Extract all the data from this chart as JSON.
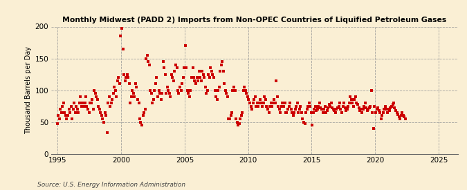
{
  "title": "Monthly Midwest (PADD 2) Imports from Non-OPEC Countries of Liquified Petroleum Gases",
  "ylabel": "Thousand Barrels per Day",
  "source": "Source: U.S. Energy Information Administration",
  "background_color": "#faefd4",
  "dot_color": "#cc0000",
  "xlim": [
    1994.5,
    2026.5
  ],
  "ylim": [
    0,
    200
  ],
  "xticks": [
    1995,
    2000,
    2005,
    2010,
    2015,
    2020,
    2025
  ],
  "yticks": [
    0,
    50,
    100,
    150,
    200
  ],
  "data_x": [
    1994.96,
    1995.04,
    1995.13,
    1995.21,
    1995.29,
    1995.38,
    1995.46,
    1995.54,
    1995.63,
    1995.71,
    1995.79,
    1995.88,
    1995.96,
    1996.04,
    1996.13,
    1996.21,
    1996.29,
    1996.38,
    1996.46,
    1996.54,
    1996.63,
    1996.71,
    1996.79,
    1996.88,
    1996.96,
    1997.04,
    1997.13,
    1997.21,
    1997.29,
    1997.38,
    1997.46,
    1997.54,
    1997.63,
    1997.71,
    1997.79,
    1997.88,
    1997.96,
    1998.04,
    1998.13,
    1998.21,
    1998.29,
    1998.38,
    1998.46,
    1998.54,
    1998.63,
    1998.71,
    1998.79,
    1998.88,
    1998.96,
    1999.04,
    1999.13,
    1999.21,
    1999.29,
    1999.38,
    1999.46,
    1999.54,
    1999.63,
    1999.71,
    1999.79,
    1999.88,
    1999.96,
    2000.04,
    2000.13,
    2000.21,
    2000.29,
    2000.38,
    2000.46,
    2000.54,
    2000.63,
    2000.71,
    2000.79,
    2000.88,
    2000.96,
    2001.04,
    2001.13,
    2001.21,
    2001.29,
    2001.38,
    2001.46,
    2001.54,
    2001.63,
    2001.71,
    2001.79,
    2001.88,
    2001.96,
    2002.04,
    2002.13,
    2002.21,
    2002.29,
    2002.38,
    2002.46,
    2002.54,
    2002.63,
    2002.71,
    2002.79,
    2002.88,
    2002.96,
    2003.04,
    2003.13,
    2003.21,
    2003.29,
    2003.38,
    2003.46,
    2003.54,
    2003.63,
    2003.71,
    2003.79,
    2003.88,
    2003.96,
    2004.04,
    2004.13,
    2004.21,
    2004.29,
    2004.38,
    2004.46,
    2004.54,
    2004.63,
    2004.71,
    2004.79,
    2004.88,
    2004.96,
    2005.04,
    2005.13,
    2005.21,
    2005.29,
    2005.38,
    2005.46,
    2005.54,
    2005.63,
    2005.71,
    2005.79,
    2005.88,
    2005.96,
    2006.04,
    2006.13,
    2006.21,
    2006.29,
    2006.38,
    2006.46,
    2006.54,
    2006.63,
    2006.71,
    2006.79,
    2006.88,
    2006.96,
    2007.04,
    2007.13,
    2007.21,
    2007.29,
    2007.38,
    2007.46,
    2007.54,
    2007.63,
    2007.71,
    2007.79,
    2007.88,
    2007.96,
    2008.04,
    2008.13,
    2008.21,
    2008.29,
    2008.38,
    2008.46,
    2008.54,
    2008.63,
    2008.71,
    2008.79,
    2008.88,
    2008.96,
    2009.04,
    2009.13,
    2009.21,
    2009.29,
    2009.38,
    2009.46,
    2009.54,
    2009.63,
    2009.71,
    2009.79,
    2009.88,
    2009.96,
    2010.04,
    2010.13,
    2010.21,
    2010.29,
    2010.38,
    2010.46,
    2010.54,
    2010.63,
    2010.71,
    2010.79,
    2010.88,
    2010.96,
    2011.04,
    2011.13,
    2011.21,
    2011.29,
    2011.38,
    2011.46,
    2011.54,
    2011.63,
    2011.71,
    2011.79,
    2011.88,
    2011.96,
    2012.04,
    2012.13,
    2012.21,
    2012.29,
    2012.38,
    2012.46,
    2012.54,
    2012.63,
    2012.71,
    2012.79,
    2012.88,
    2012.96,
    2013.04,
    2013.13,
    2013.21,
    2013.29,
    2013.38,
    2013.46,
    2013.54,
    2013.63,
    2013.71,
    2013.79,
    2013.88,
    2013.96,
    2014.04,
    2014.13,
    2014.21,
    2014.29,
    2014.38,
    2014.46,
    2014.54,
    2014.63,
    2014.71,
    2014.79,
    2014.88,
    2014.96,
    2015.04,
    2015.13,
    2015.21,
    2015.29,
    2015.38,
    2015.46,
    2015.54,
    2015.63,
    2015.71,
    2015.79,
    2015.88,
    2015.96,
    2016.04,
    2016.13,
    2016.21,
    2016.29,
    2016.38,
    2016.46,
    2016.54,
    2016.63,
    2016.71,
    2016.79,
    2016.88,
    2016.96,
    2017.04,
    2017.13,
    2017.21,
    2017.29,
    2017.38,
    2017.46,
    2017.54,
    2017.63,
    2017.71,
    2017.79,
    2017.88,
    2017.96,
    2018.04,
    2018.13,
    2018.21,
    2018.29,
    2018.38,
    2018.46,
    2018.54,
    2018.63,
    2018.71,
    2018.79,
    2018.88,
    2018.96,
    2019.04,
    2019.13,
    2019.21,
    2019.29,
    2019.38,
    2019.46,
    2019.54,
    2019.63,
    2019.71,
    2019.79,
    2019.88,
    2019.96,
    2020.04,
    2020.13,
    2020.21,
    2020.29,
    2020.38,
    2020.46,
    2020.54,
    2020.63,
    2020.71,
    2020.79,
    2020.88,
    2020.96,
    2021.04,
    2021.13,
    2021.21,
    2021.29,
    2021.38,
    2021.46,
    2021.54,
    2021.63,
    2021.71,
    2021.79,
    2021.88,
    2021.96,
    2022.04,
    2022.13,
    2022.21,
    2022.29,
    2022.38
  ],
  "data_y": [
    48,
    60,
    55,
    70,
    65,
    75,
    80,
    65,
    60,
    55,
    60,
    70,
    65,
    75,
    55,
    70,
    80,
    65,
    75,
    70,
    65,
    80,
    90,
    75,
    80,
    75,
    80,
    90,
    75,
    70,
    65,
    80,
    80,
    85,
    70,
    100,
    95,
    90,
    85,
    75,
    70,
    65,
    60,
    55,
    50,
    65,
    60,
    33,
    80,
    90,
    75,
    80,
    85,
    95,
    105,
    100,
    90,
    115,
    120,
    110,
    185,
    197,
    165,
    125,
    115,
    120,
    125,
    120,
    110,
    80,
    90,
    100,
    95,
    90,
    110,
    105,
    85,
    80,
    55,
    50,
    45,
    60,
    65,
    70,
    150,
    155,
    145,
    140,
    100,
    95,
    80,
    85,
    100,
    110,
    120,
    90,
    100,
    95,
    85,
    95,
    145,
    135,
    125,
    95,
    105,
    100,
    95,
    90,
    125,
    120,
    115,
    130,
    140,
    135,
    100,
    95,
    105,
    100,
    110,
    120,
    135,
    170,
    135,
    100,
    95,
    90,
    100,
    120,
    135,
    120,
    115,
    110,
    120,
    115,
    130,
    120,
    115,
    130,
    125,
    120,
    105,
    95,
    100,
    125,
    120,
    135,
    130,
    125,
    120,
    100,
    90,
    85,
    100,
    105,
    130,
    140,
    145,
    130,
    110,
    100,
    95,
    90,
    55,
    55,
    60,
    65,
    100,
    105,
    100,
    55,
    50,
    45,
    48,
    55,
    60,
    65,
    100,
    105,
    100,
    95,
    90,
    85,
    80,
    75,
    70,
    80,
    85,
    90,
    75,
    80,
    75,
    80,
    85,
    80,
    75,
    80,
    90,
    85,
    75,
    70,
    65,
    75,
    80,
    75,
    80,
    85,
    80,
    115,
    90,
    75,
    70,
    65,
    75,
    80,
    75,
    80,
    65,
    65,
    70,
    75,
    80,
    70,
    65,
    60,
    65,
    70,
    75,
    80,
    65,
    70,
    75,
    65,
    55,
    50,
    48,
    65,
    70,
    75,
    80,
    75,
    65,
    45,
    65,
    70,
    75,
    68,
    70,
    75,
    80,
    72,
    70,
    65,
    70,
    75,
    65,
    68,
    72,
    78,
    75,
    80,
    72,
    70,
    68,
    65,
    70,
    72,
    75,
    80,
    70,
    65,
    75,
    80,
    72,
    68,
    70,
    75,
    80,
    90,
    85,
    80,
    75,
    85,
    90,
    80,
    78,
    72,
    68,
    70,
    65,
    70,
    75,
    80,
    72,
    68,
    70,
    72,
    75,
    100,
    65,
    40,
    75,
    65,
    70,
    72,
    68,
    65,
    55,
    60,
    65,
    70,
    75,
    70,
    65,
    70,
    68,
    72,
    75,
    78,
    80,
    72,
    68,
    65,
    62,
    58,
    55,
    60,
    65,
    60,
    58,
    55
  ]
}
